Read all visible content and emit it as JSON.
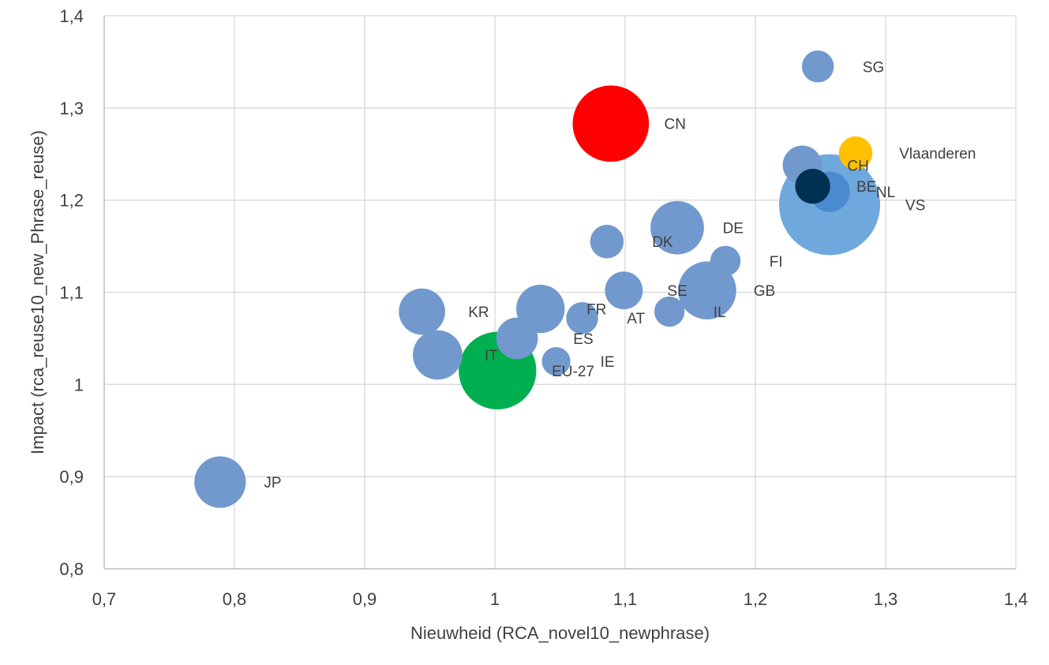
{
  "chart_data": {
    "type": "scatter",
    "subtype": "bubble",
    "title": "",
    "xlabel": "Nieuwheid (RCA_novel10_newphrase)",
    "ylabel": "Impact (rca_reuse10_new_Phrase_reuse)",
    "xlim": [
      0.7,
      1.4
    ],
    "ylim": [
      0.8,
      1.4
    ],
    "xticks": [
      "0,7",
      "0,8",
      "0,9",
      "1",
      "1,1",
      "1,2",
      "1,3",
      "1,4"
    ],
    "yticks": [
      "0,8",
      "0,9",
      "1",
      "1,1",
      "1,2",
      "1,3",
      "1,4"
    ],
    "grid": true,
    "colors": {
      "default": "#7199CE",
      "cn": "#FF0000",
      "eu27": "#00B050",
      "vs": "#6FA8DC",
      "vlaanderen": "#FFC000",
      "be": "#003052",
      "nl": "#4A8BD0"
    },
    "points": [
      {
        "label": "VS",
        "x": 1.257,
        "y": 1.195,
        "size": 100,
        "color": "#6FA8DC",
        "label_dx": 1.5,
        "label_dy": 0.2
      },
      {
        "label": "CN",
        "x": 1.089,
        "y": 1.283,
        "size": 57,
        "color": "#FF0000",
        "label_dx": 1.4,
        "label_dy": 0.2
      },
      {
        "label": "EU-27",
        "x": 1.002,
        "y": 1.015,
        "size": 59,
        "color": "#00B050",
        "label_dx": 1.4,
        "label_dy": 0.2
      },
      {
        "label": "GB",
        "x": 1.163,
        "y": 1.102,
        "size": 33,
        "color": "#7199CE",
        "label_dx": 1.6,
        "label_dy": 0.2
      },
      {
        "label": "DE",
        "x": 1.14,
        "y": 1.17,
        "size": 28,
        "color": "#7199CE",
        "label_dx": 1.7,
        "label_dy": 0.2
      },
      {
        "label": "JP",
        "x": 0.789,
        "y": 0.894,
        "size": 26,
        "color": "#7199CE",
        "label_dx": 1.7,
        "label_dy": 0.2
      },
      {
        "label": "IT",
        "x": 0.956,
        "y": 1.032,
        "size": 24,
        "color": "#7199CE",
        "label_dx": 1.9,
        "label_dy": 0.2
      },
      {
        "label": "FR",
        "x": 1.035,
        "y": 1.082,
        "size": 23,
        "color": "#7199CE",
        "label_dx": 1.9,
        "label_dy": 0.2
      },
      {
        "label": "KR",
        "x": 0.944,
        "y": 1.079,
        "size": 21,
        "color": "#7199CE",
        "label_dx": 2.0,
        "label_dy": 0.2
      },
      {
        "label": "ES",
        "x": 1.017,
        "y": 1.05,
        "size": 17,
        "color": "#7199CE",
        "label_dx": 2.7,
        "label_dy": 0.2
      },
      {
        "label": "CH",
        "x": 1.236,
        "y": 1.238,
        "size": 15,
        "color": "#7199CE",
        "label_dx": 2.3,
        "label_dy": 0.2
      },
      {
        "label": "NL",
        "x": 1.257,
        "y": 1.209,
        "size": 16,
        "color": "#4A8BD0",
        "label_dx": 2.3,
        "label_dy": 0.2
      },
      {
        "label": "SE",
        "x": 1.099,
        "y": 1.102,
        "size": 14,
        "color": "#7199CE",
        "label_dx": 2.3,
        "label_dy": 0.2
      },
      {
        "label": "BE",
        "x": 1.244,
        "y": 1.215,
        "size": 12,
        "color": "#003052",
        "label_dx": 2.5,
        "label_dy": 0.2
      },
      {
        "label": "Vlaanderen",
        "x": 1.277,
        "y": 1.251,
        "size": 11,
        "color": "#FFC000",
        "label_dx": 2.6,
        "label_dy": 0.2
      },
      {
        "label": "DK",
        "x": 1.086,
        "y": 1.155,
        "size": 11,
        "color": "#7199CE",
        "label_dx": 2.7,
        "label_dy": 0.2
      },
      {
        "label": "AT",
        "x": 1.067,
        "y": 1.072,
        "size": 10,
        "color": "#7199CE",
        "label_dx": 2.8,
        "label_dy": 0.2
      },
      {
        "label": "SG",
        "x": 1.248,
        "y": 1.345,
        "size": 10,
        "color": "#7199CE",
        "label_dx": 2.8,
        "label_dy": 0.2
      },
      {
        "label": "FI",
        "x": 1.177,
        "y": 1.134,
        "size": 9,
        "color": "#7199CE",
        "label_dx": 2.9,
        "label_dy": 0.2
      },
      {
        "label": "IL",
        "x": 1.134,
        "y": 1.079,
        "size": 9,
        "color": "#7199CE",
        "label_dx": 2.9,
        "label_dy": 0.2
      },
      {
        "label": "IE",
        "x": 1.047,
        "y": 1.025,
        "size": 8,
        "color": "#7199CE",
        "label_dx": 3.1,
        "label_dy": 0.2
      }
    ]
  }
}
